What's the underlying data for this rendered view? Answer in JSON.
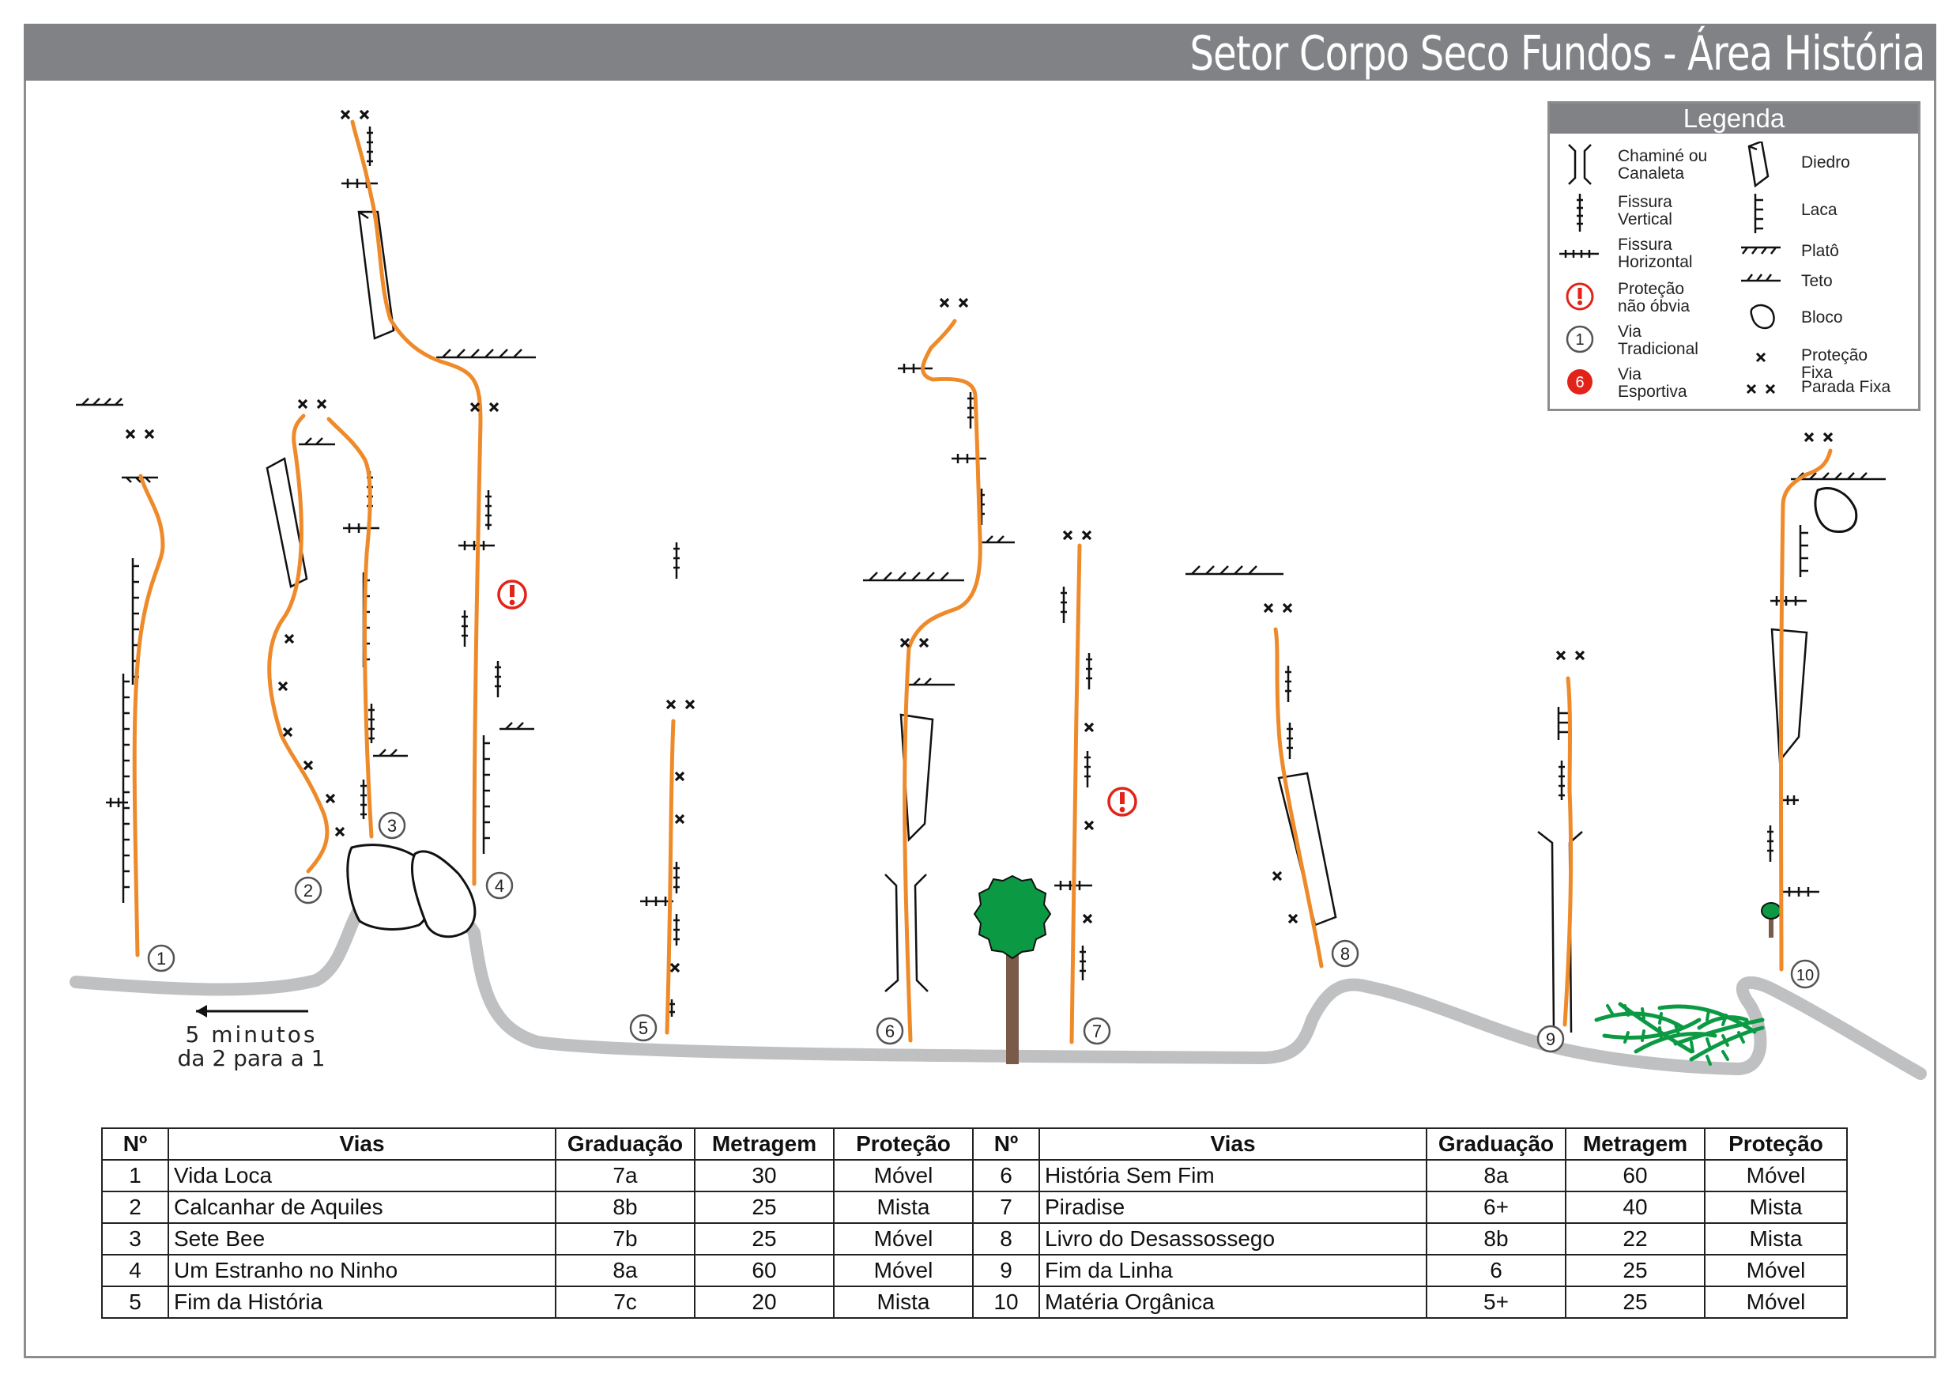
{
  "title": "Setor Corpo Seco Fundos - Área História",
  "walk_note": [
    "5 minutos",
    "da 2 para a 1"
  ],
  "colors": {
    "route": "#ee8a2a",
    "trail": "#bfc0c2",
    "header": "#818285",
    "tree": "#0b9a43",
    "warning": "#e2231a"
  },
  "legend": {
    "title": "Legenda",
    "items": [
      {
        "icon": "chimney-icon",
        "label": "Chaminé ou Canaleta"
      },
      {
        "icon": "vertical-crack-icon",
        "label": "Fissura Vertical"
      },
      {
        "icon": "horizontal-crack-icon",
        "label": "Fissura Horizontal"
      },
      {
        "icon": "warning-icon",
        "label": "Proteção não óbvia"
      },
      {
        "icon": "trad-route-icon",
        "label": "Via Tradicional",
        "symbol": "1"
      },
      {
        "icon": "sport-route-icon",
        "label": "Via Esportiva",
        "symbol": "6"
      },
      {
        "icon": "dihedral-icon",
        "label": "Diedro"
      },
      {
        "icon": "flake-icon",
        "label": "Laca"
      },
      {
        "icon": "ledge-icon",
        "label": "Platô"
      },
      {
        "icon": "roof-icon",
        "label": "Teto"
      },
      {
        "icon": "boulder-icon",
        "label": "Bloco"
      },
      {
        "icon": "bolt-icon",
        "label": "Proteção Fixa"
      },
      {
        "icon": "anchor-icon",
        "label": "Parada Fixa"
      }
    ]
  },
  "route_numbers": [
    "1",
    "2",
    "3",
    "4",
    "5",
    "6",
    "7",
    "8",
    "9",
    "10"
  ],
  "table": {
    "headers": [
      "Nº",
      "Vias",
      "Graduação",
      "Metragem",
      "Proteção",
      "Nº",
      "Vias",
      "Graduação",
      "Metragem",
      "Proteção"
    ],
    "left": [
      {
        "n": "1",
        "name": "Vida Loca",
        "grade": "7a",
        "length": "30",
        "protection": "Móvel"
      },
      {
        "n": "2",
        "name": "Calcanhar de Aquiles",
        "grade": "8b",
        "length": "25",
        "protection": "Mista"
      },
      {
        "n": "3",
        "name": "Sete Bee",
        "grade": "7b",
        "length": "25",
        "protection": "Móvel"
      },
      {
        "n": "4",
        "name": "Um Estranho no Ninho",
        "grade": "8a",
        "length": "60",
        "protection": "Móvel"
      },
      {
        "n": "5",
        "name": "Fim da História",
        "grade": "7c",
        "length": "20",
        "protection": "Mista"
      }
    ],
    "right": [
      {
        "n": "6",
        "name": "História Sem Fim",
        "grade": "8a",
        "length": "60",
        "protection": "Móvel"
      },
      {
        "n": "7",
        "name": "Piradise",
        "grade": "6+",
        "length": "40",
        "protection": "Mista"
      },
      {
        "n": "8",
        "name": "Livro do Desassossego",
        "grade": "8b",
        "length": "22",
        "protection": "Mista"
      },
      {
        "n": "9",
        "name": "Fim da Linha",
        "grade": "6",
        "length": "25",
        "protection": "Móvel"
      },
      {
        "n": "10",
        "name": "Matéria Orgânica",
        "grade": "5+",
        "length": "25",
        "protection": "Móvel"
      }
    ]
  }
}
